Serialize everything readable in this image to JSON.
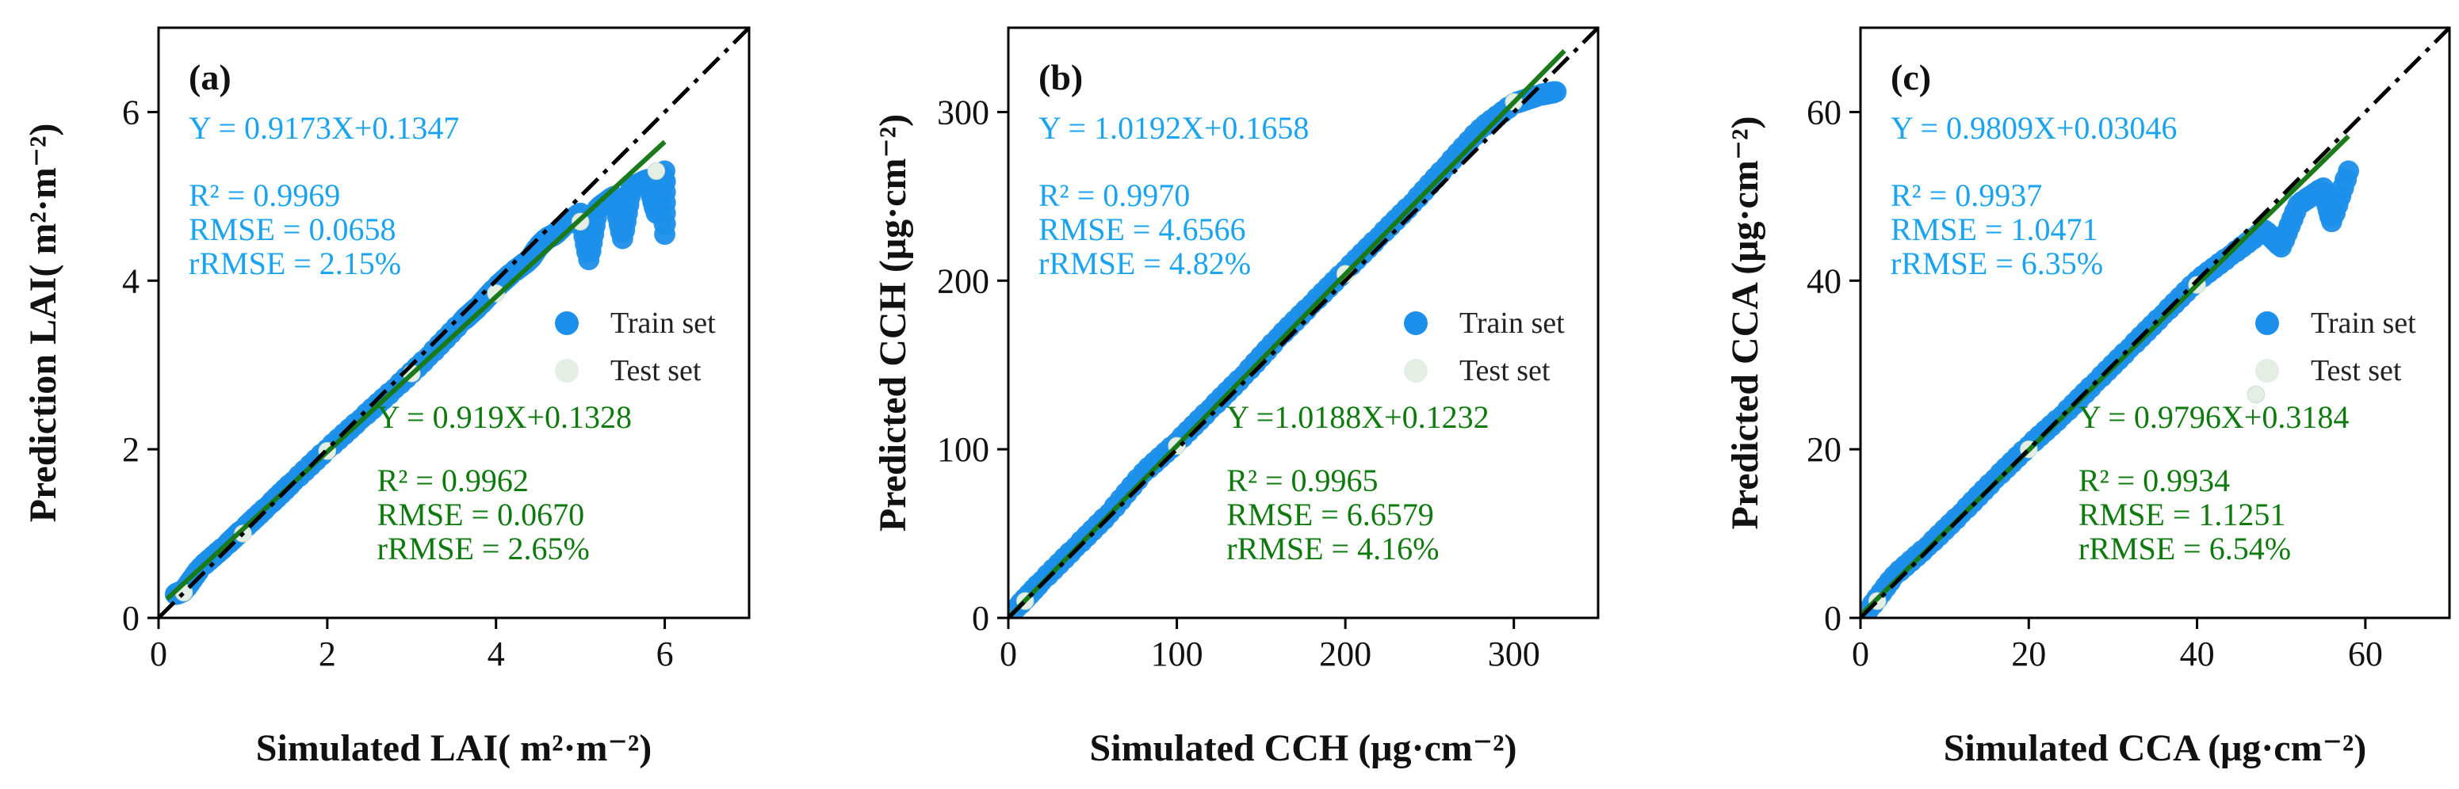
{
  "figure": {
    "background": "#ffffff"
  },
  "colors": {
    "train": "#1c8fea",
    "test": "#e4eee4",
    "fit": "#1a7a1a",
    "identity": "#000000",
    "train_text": "#1aa3ee",
    "test_text": "#0e7a0e"
  },
  "chart_data": [
    {
      "type": "scatter",
      "panel": "(a)",
      "xlabel": "Simulated LAI( m²·m⁻²)",
      "ylabel": "Prediction LAI( m²·m⁻²)",
      "xlim": [
        0,
        7
      ],
      "ylim": [
        0,
        7
      ],
      "xticks": [
        0,
        2,
        4,
        6
      ],
      "yticks": [
        0,
        2,
        4,
        6
      ],
      "train_stats": [
        "Y = 0.9173X+0.1347",
        "R² = 0.9969",
        "RMSE = 0.0658",
        "rRMSE = 2.15%"
      ],
      "test_stats": [
        "Y = 0.919X+0.1328",
        "R² = 0.9962",
        "RMSE = 0.0670",
        "rRMSE = 2.65%"
      ],
      "legend": [
        "Train set",
        "Test set"
      ],
      "fit_line": {
        "slope": 0.919,
        "intercept": 0.1328,
        "x_range": [
          0.1,
          6.0
        ]
      },
      "identity_line": {
        "x_range": [
          0,
          7
        ]
      },
      "train_points": [
        [
          0.2,
          0.28
        ],
        [
          0.3,
          0.32
        ],
        [
          0.5,
          0.6
        ],
        [
          0.8,
          0.86
        ],
        [
          1.0,
          1.05
        ],
        [
          1.3,
          1.33
        ],
        [
          1.6,
          1.62
        ],
        [
          2.0,
          2.0
        ],
        [
          2.4,
          2.36
        ],
        [
          2.8,
          2.72
        ],
        [
          3.2,
          3.1
        ],
        [
          3.6,
          3.52
        ],
        [
          3.8,
          3.7
        ],
        [
          4.0,
          3.92
        ],
        [
          4.2,
          4.1
        ],
        [
          4.4,
          4.25
        ],
        [
          4.5,
          4.4
        ],
        [
          4.6,
          4.5
        ],
        [
          4.7,
          4.55
        ],
        [
          4.8,
          4.65
        ],
        [
          5.0,
          4.8
        ],
        [
          5.2,
          4.85
        ],
        [
          5.4,
          5.0
        ],
        [
          5.5,
          4.5
        ],
        [
          5.6,
          5.1
        ],
        [
          5.8,
          5.2
        ],
        [
          5.9,
          4.8
        ],
        [
          6.0,
          5.3
        ],
        [
          6.0,
          4.55
        ],
        [
          5.1,
          4.25
        ]
      ],
      "test_points": [
        [
          0.3,
          0.3
        ],
        [
          1.0,
          1.0
        ],
        [
          2.0,
          1.98
        ],
        [
          3.0,
          2.9
        ],
        [
          4.0,
          3.85
        ],
        [
          5.0,
          4.7
        ],
        [
          5.9,
          5.3
        ]
      ]
    },
    {
      "type": "scatter",
      "panel": "(b)",
      "xlabel": "Simulated CCH (μg·cm⁻²)",
      "ylabel": "Predicted CCH (μg·cm⁻²)",
      "xlim": [
        0,
        350
      ],
      "ylim": [
        0,
        350
      ],
      "xticks": [
        0,
        100,
        200,
        300
      ],
      "yticks": [
        0,
        100,
        200,
        300
      ],
      "train_stats": [
        "Y = 1.0192X+0.1658",
        "R² = 0.9970",
        "RMSE = 4.6566",
        "rRMSE = 4.82%"
      ],
      "test_stats": [
        "Y =1.0188X+0.1232",
        "R² = 0.9965",
        "RMSE = 6.6579",
        "rRMSE = 4.16%"
      ],
      "legend": [
        "Train set",
        "Test set"
      ],
      "fit_line": {
        "slope": 1.0188,
        "intercept": 0.1232,
        "x_range": [
          0,
          330
        ]
      },
      "identity_line": {
        "x_range": [
          0,
          350
        ]
      },
      "train_points": [
        [
          5,
          6
        ],
        [
          20,
          22
        ],
        [
          40,
          42
        ],
        [
          60,
          62
        ],
        [
          80,
          86
        ],
        [
          100,
          104
        ],
        [
          120,
          124
        ],
        [
          140,
          144
        ],
        [
          160,
          166
        ],
        [
          180,
          186
        ],
        [
          200,
          206
        ],
        [
          220,
          226
        ],
        [
          240,
          246
        ],
        [
          260,
          268
        ],
        [
          280,
          290
        ],
        [
          300,
          305
        ],
        [
          315,
          310
        ],
        [
          325,
          312
        ]
      ],
      "test_points": [
        [
          10,
          10
        ],
        [
          100,
          102
        ],
        [
          200,
          204
        ],
        [
          300,
          306
        ]
      ]
    },
    {
      "type": "scatter",
      "panel": "(c)",
      "xlabel": "Simulated CCA (μg·cm⁻²)",
      "ylabel": "Predicted CCA (μg·cm⁻²)",
      "xlim": [
        0,
        70
      ],
      "ylim": [
        0,
        70
      ],
      "xticks": [
        0,
        20,
        40,
        60
      ],
      "yticks": [
        0,
        20,
        40,
        60
      ],
      "train_stats": [
        "Y = 0.9809X+0.03046",
        "R² = 0.9937",
        "RMSE = 1.0471",
        "rRMSE = 6.35%"
      ],
      "test_stats": [
        "Y = 0.9796X+0.3184",
        "R² = 0.9934",
        "RMSE = 1.1251",
        "rRMSE = 6.54%"
      ],
      "legend": [
        "Train set",
        "Test set"
      ],
      "fit_line": {
        "slope": 0.9796,
        "intercept": 0.3184,
        "x_range": [
          0,
          58
        ]
      },
      "identity_line": {
        "x_range": [
          0,
          70
        ]
      },
      "train_points": [
        [
          1,
          1
        ],
        [
          4,
          5
        ],
        [
          8,
          8.5
        ],
        [
          12,
          12.4
        ],
        [
          16,
          16.5
        ],
        [
          20,
          20.4
        ],
        [
          24,
          24
        ],
        [
          28,
          28
        ],
        [
          32,
          32
        ],
        [
          36,
          36
        ],
        [
          40,
          40
        ],
        [
          44,
          43
        ],
        [
          48,
          46
        ],
        [
          52,
          49
        ],
        [
          55,
          51
        ],
        [
          58,
          53
        ],
        [
          56,
          47
        ],
        [
          50,
          44
        ]
      ],
      "test_points": [
        [
          2,
          2
        ],
        [
          20,
          20
        ],
        [
          40,
          39.5
        ],
        [
          47,
          26.5
        ]
      ]
    }
  ]
}
